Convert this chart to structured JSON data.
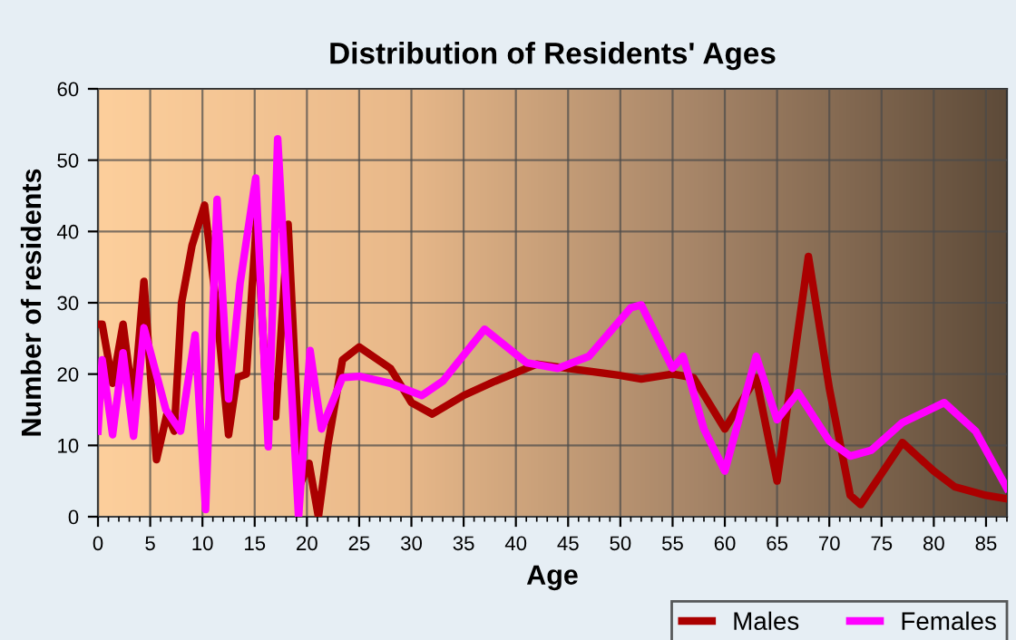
{
  "chart_data": {
    "type": "line",
    "title": "Distribution of Residents' Ages",
    "xlabel": "Age",
    "ylabel": "Number of residents",
    "xlim": [
      0,
      87
    ],
    "xticks": [
      0,
      5,
      10,
      15,
      20,
      25,
      30,
      35,
      40,
      45,
      50,
      55,
      60,
      65,
      70,
      75,
      80,
      85
    ],
    "ylim": [
      0,
      60
    ],
    "yticks": [
      0,
      10,
      20,
      30,
      40,
      50,
      60
    ],
    "grid": true,
    "legend": "bottom right",
    "series": [
      {
        "name": "Males",
        "color": "#aa0000",
        "x": [
          0,
          0.4,
          1.4,
          2.4,
          3.4,
          4.4,
          5.6,
          6.6,
          7.3,
          8,
          9,
          10.2,
          11.3,
          12.5,
          13.3,
          14.2,
          15.2,
          16,
          17,
          18.2,
          19.4,
          20.2,
          21.1,
          22,
          23.4,
          25,
          28,
          30,
          32,
          35,
          38,
          42,
          45,
          50,
          52,
          55,
          57,
          60,
          63,
          65,
          68,
          70,
          72,
          73,
          77,
          80,
          82,
          85,
          87
        ],
        "values": [
          27,
          27,
          18.7,
          27,
          15.7,
          33,
          8,
          14.4,
          12,
          30,
          38,
          43.7,
          30,
          11.5,
          19.5,
          20,
          42,
          20,
          14,
          41,
          4.7,
          7.5,
          0,
          10,
          22,
          23.8,
          20.8,
          16,
          14.4,
          17,
          19,
          21.4,
          20.8,
          19.8,
          19.3,
          20,
          19.5,
          12.3,
          19.5,
          5,
          36.5,
          18,
          3,
          1.7,
          10.4,
          6.4,
          4.2,
          3,
          2.5
        ]
      },
      {
        "name": "Females",
        "color": "#ff00ff",
        "x": [
          0,
          0.4,
          1.4,
          2.4,
          3.4,
          4.4,
          6.5,
          7.9,
          9.3,
          10.3,
          11.4,
          12.5,
          13.6,
          15.1,
          16.3,
          17.2,
          19.2,
          20.3,
          21.4,
          23.4,
          25,
          28,
          31,
          33,
          37,
          41,
          44,
          47,
          51,
          52,
          55,
          56,
          58,
          60,
          63,
          65,
          67,
          70,
          72,
          74,
          77,
          81,
          84,
          87
        ],
        "values": [
          12,
          22,
          11.5,
          23,
          11.3,
          26.5,
          15,
          12,
          25.5,
          1,
          44.5,
          16.5,
          32.7,
          47.5,
          9.8,
          53,
          0,
          23.3,
          12.3,
          19.5,
          19.7,
          18.7,
          17,
          19,
          26.3,
          21.6,
          20.8,
          22.5,
          29.3,
          29.7,
          20.8,
          22.5,
          12.3,
          6.4,
          22.5,
          13.6,
          17.4,
          10.6,
          8.5,
          9.3,
          13.2,
          16,
          12,
          4
        ]
      }
    ]
  }
}
